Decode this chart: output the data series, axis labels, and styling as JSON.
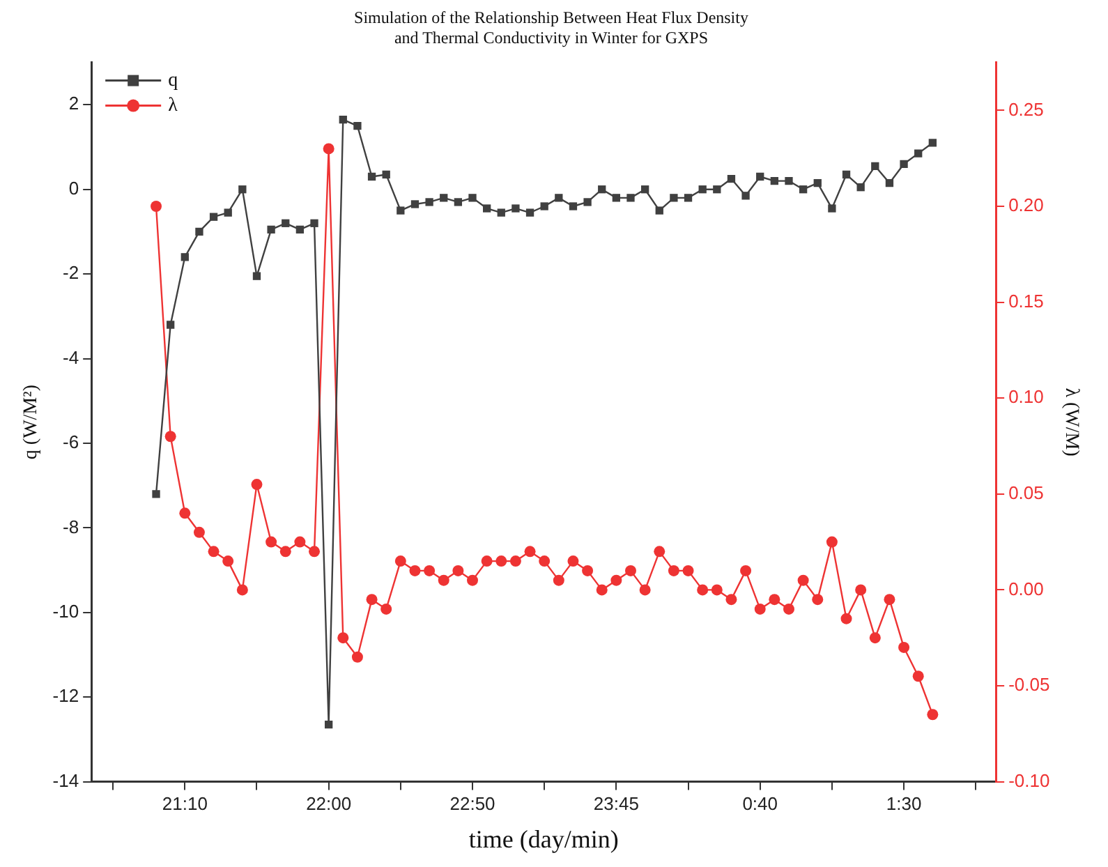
{
  "chart_data": {
    "type": "line",
    "title": "Simulation of the Relationship Between Heat Flux Density\nand Thermal Conductivity in Winter for GXPS",
    "xlabel": "time (day/min)",
    "ylabel": "q (W/M²)",
    "y2label": "λ (W/M)",
    "categories": [
      null,
      null,
      "21:10",
      null,
      null,
      null,
      null,
      null,
      null,
      null,
      null,
      null,
      "22:00",
      null,
      null,
      null,
      null,
      null,
      null,
      null,
      null,
      null,
      "22:50",
      null,
      null,
      null,
      null,
      null,
      null,
      null,
      null,
      null,
      "23:45",
      null,
      null,
      null,
      null,
      null,
      null,
      null,
      null,
      null,
      "0:40",
      null,
      null,
      null,
      null,
      null,
      null,
      null,
      null,
      null,
      "1:30",
      null,
      null
    ],
    "ylim": [
      -14,
      3
    ],
    "yticks": [
      -14,
      -12,
      -10,
      -8,
      -6,
      -4,
      -2,
      0,
      2
    ],
    "y2lim": [
      -0.1,
      0.275
    ],
    "y2ticks": [
      {
        "value": -0.1,
        "label": "-0.10"
      },
      {
        "value": -0.05,
        "label": "-0.05"
      },
      {
        "value": 0,
        "label": "0.00"
      },
      {
        "value": 0.05,
        "label": "0.05"
      },
      {
        "value": 0.1,
        "label": "0.10"
      },
      {
        "value": 0.15,
        "label": "0.15"
      },
      {
        "value": 0.2,
        "label": "0.20"
      },
      {
        "value": 0.25,
        "label": "0.25"
      }
    ],
    "legend": "top left",
    "series": [
      {
        "name": "q",
        "color": "#404040",
        "marker": "square",
        "values": [
          -7.2,
          -3.2,
          -1.6,
          -1.0,
          -0.65,
          -0.55,
          0.0,
          -2.05,
          -0.95,
          -0.8,
          -0.95,
          -0.8,
          -12.65,
          1.65,
          1.5,
          0.3,
          0.35,
          -0.5,
          -0.35,
          -0.3,
          -0.2,
          -0.3,
          -0.2,
          -0.45,
          -0.55,
          -0.45,
          -0.55,
          -0.4,
          -0.2,
          -0.4,
          -0.3,
          0.0,
          -0.2,
          -0.2,
          0.0,
          -0.5,
          -0.2,
          -0.2,
          0.0,
          0.0,
          0.25,
          -0.15,
          0.3,
          0.2,
          0.2,
          0.0,
          0.15,
          -0.45,
          0.35,
          0.05,
          0.55,
          0.15,
          0.6,
          0.85,
          1.1
        ]
      },
      {
        "name": "λ",
        "color": "#ee3333",
        "marker": "circle",
        "axis": "y2",
        "values": [
          0.2,
          0.08,
          0.04,
          0.03,
          0.02,
          0.015,
          0.0,
          0.055,
          0.025,
          0.02,
          0.025,
          0.02,
          0.23,
          -0.025,
          -0.035,
          -0.005,
          -0.01,
          0.015,
          0.01,
          0.01,
          0.005,
          0.01,
          0.005,
          0.015,
          0.015,
          0.015,
          0.02,
          0.015,
          0.005,
          0.015,
          0.01,
          0.0,
          0.005,
          0.01,
          0.0,
          0.02,
          0.01,
          0.01,
          0.0,
          0.0,
          -0.005,
          0.01,
          -0.01,
          -0.005,
          -0.01,
          0.005,
          -0.005,
          0.025,
          -0.015,
          0.0,
          -0.025,
          -0.005,
          -0.03,
          -0.045,
          -0.065
        ]
      }
    ]
  }
}
